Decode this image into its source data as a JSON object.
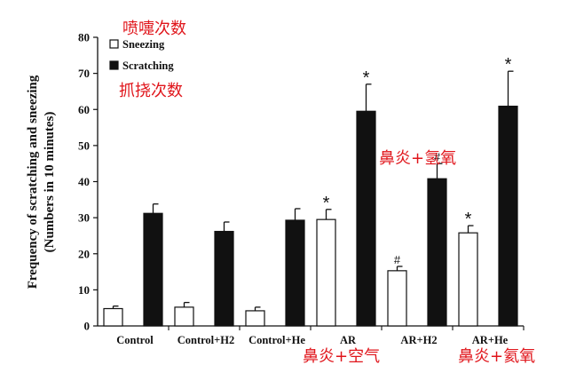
{
  "chart_data": {
    "type": "bar",
    "ylabel_line1": "Frequency of scratching and sneezing",
    "ylabel_line2": "(Numbers in 10 minutes)",
    "ylim": [
      0,
      80
    ],
    "yticks": [
      "0",
      "10",
      "20",
      "30",
      "40",
      "50",
      "60",
      "70",
      "80"
    ],
    "categories": [
      "Control",
      "Control+H2",
      "Control+He",
      "AR",
      "AR+H2",
      "AR+He"
    ],
    "series": [
      {
        "name": "Sneezing",
        "color": "#ffffff",
        "values": [
          4.8,
          5.2,
          4.2,
          29.5,
          15.3,
          25.8
        ],
        "errors": [
          0.7,
          1.3,
          1.0,
          2.8,
          1.2,
          2.0
        ],
        "marks": [
          "",
          "",
          "",
          "*",
          "#",
          "*"
        ]
      },
      {
        "name": "Scratching",
        "color": "#111111",
        "values": [
          31.2,
          26.2,
          29.3,
          59.5,
          40.8,
          60.9
        ],
        "errors": [
          2.6,
          2.6,
          3.2,
          7.5,
          4.2,
          9.7
        ],
        "marks": [
          "",
          "",
          "",
          "*",
          "#",
          "*"
        ]
      }
    ],
    "legend_position": "top-left"
  },
  "annotations": {
    "sneezing_cn": "喷嚏次数",
    "scratching_cn": "抓挠次数",
    "ar_h2_cn": "鼻炎+氢氧",
    "ar_cn": "鼻炎+空气",
    "ar_he_cn": "鼻炎+氦氧"
  }
}
